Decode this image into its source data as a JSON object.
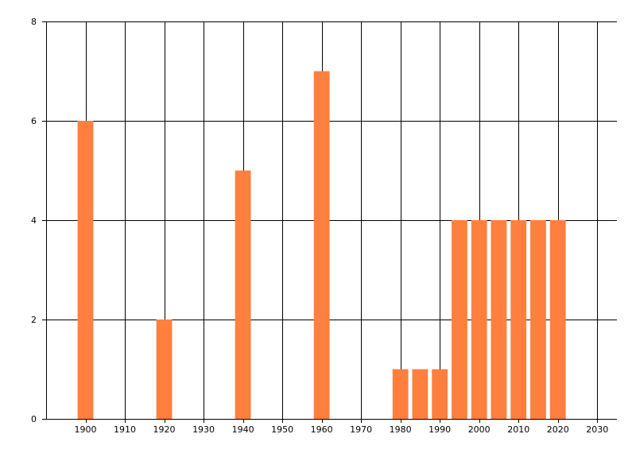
{
  "chart_data": {
    "type": "bar",
    "title": "",
    "xlabel": "",
    "ylabel": "",
    "xlim": [
      1890,
      2035
    ],
    "ylim": [
      0,
      8
    ],
    "x_ticks": [
      1900,
      1910,
      1920,
      1930,
      1940,
      1950,
      1960,
      1970,
      1980,
      1990,
      2000,
      2010,
      2020,
      2030
    ],
    "x_tick_labels": [
      "1900",
      "1910",
      "1920",
      "1930",
      "1940",
      "1950",
      "1960",
      "1970",
      "1980",
      "1990",
      "2000",
      "2010",
      "2020",
      "2030"
    ],
    "y_ticks": [
      0,
      2,
      4,
      6,
      8
    ],
    "y_tick_labels": [
      "0",
      "2",
      "4",
      "6",
      "8"
    ],
    "grid": true,
    "bar_width_years": 4,
    "bar_color": "#FF7F3F",
    "x": [
      1900,
      1920,
      1940,
      1960,
      1980,
      1985,
      1990,
      1995,
      2000,
      2005,
      2010,
      2015,
      2020
    ],
    "values": [
      6,
      2,
      5,
      7,
      1,
      1,
      1,
      4,
      4,
      4,
      4,
      4,
      4
    ]
  }
}
